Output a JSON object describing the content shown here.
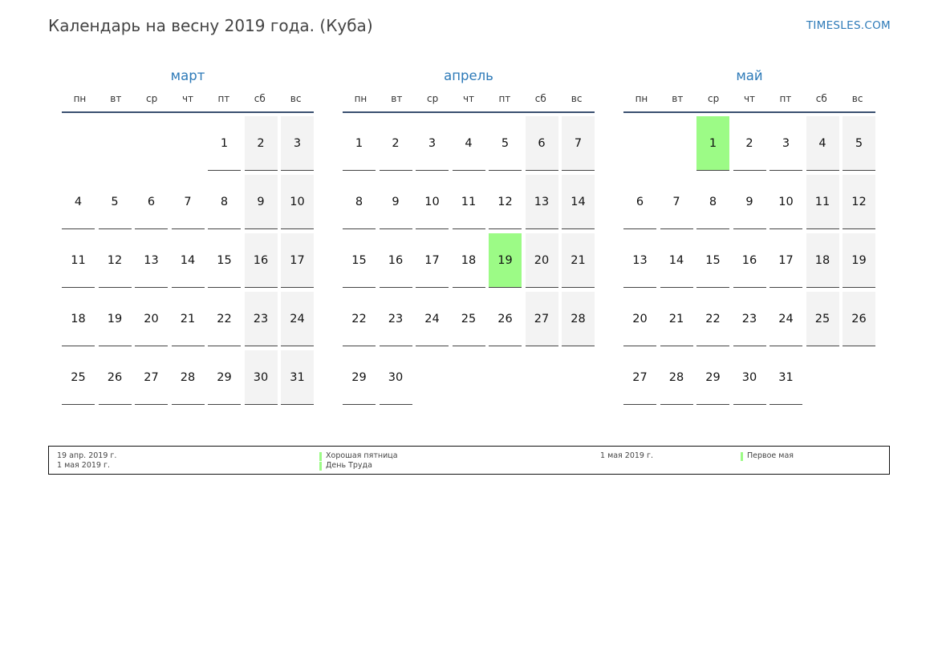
{
  "header": {
    "title": "Календарь на весну 2019 года. (Куба)",
    "brand": "TIMESLES.COM"
  },
  "weekdays": [
    "пн",
    "вт",
    "ср",
    "чт",
    "пт",
    "сб",
    "вс"
  ],
  "colors": {
    "accent": "#2d7ab8",
    "holiday": "#9cfb86",
    "weekend": "#f3f3f3"
  },
  "months": [
    {
      "name": "март",
      "lead": 4,
      "days": 31,
      "weekends": [
        2,
        3,
        9,
        10,
        16,
        17,
        23,
        24,
        30,
        31
      ],
      "holidays": []
    },
    {
      "name": "апрель",
      "lead": 0,
      "days": 30,
      "weekends": [
        6,
        7,
        13,
        14,
        20,
        21,
        27,
        28
      ],
      "holidays": [
        19
      ]
    },
    {
      "name": "май",
      "lead": 2,
      "days": 31,
      "weekends": [
        4,
        5,
        11,
        12,
        18,
        19,
        25,
        26
      ],
      "holidays": [
        1
      ]
    }
  ],
  "legend": {
    "dates_left": [
      "19 апр. 2019 г.",
      "1 мая 2019 г."
    ],
    "names_left": [
      "Хорошая пятница",
      "День Труда"
    ],
    "dates_right": [
      "1 мая 2019 г."
    ],
    "names_right": [
      "Первое мая"
    ]
  }
}
